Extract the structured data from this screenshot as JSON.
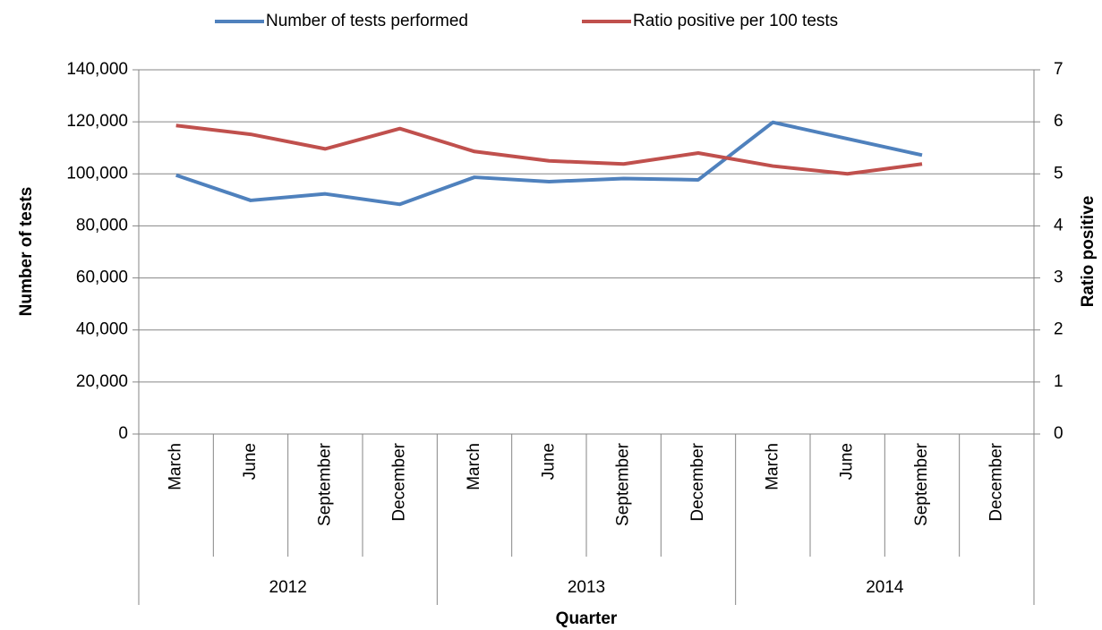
{
  "chart_data": {
    "type": "line",
    "categories": [
      "March",
      "June",
      "September",
      "December",
      "March",
      "June",
      "September",
      "December",
      "March",
      "June",
      "September",
      "December"
    ],
    "category_groups": [
      {
        "name": "2012",
        "count": 4
      },
      {
        "name": "2013",
        "count": 4
      },
      {
        "name": "2014",
        "count": 4
      }
    ],
    "x_label": "Quarter",
    "y_label": "Number of tests",
    "y2_label": "Ratio positive",
    "ylim": [
      0,
      140000
    ],
    "yticks": [
      {
        "value": 0,
        "label": "0"
      },
      {
        "value": 20000,
        "label": "20,000"
      },
      {
        "value": 40000,
        "label": "40,000"
      },
      {
        "value": 60000,
        "label": "60,000"
      },
      {
        "value": 80000,
        "label": "80,000"
      },
      {
        "value": 100000,
        "label": "100,000"
      },
      {
        "value": 120000,
        "label": "120,000"
      },
      {
        "value": 140000,
        "label": "140,000"
      }
    ],
    "y2lim": [
      0,
      7
    ],
    "y2ticks": [
      0,
      1,
      2,
      3,
      4,
      5,
      6,
      7
    ],
    "grid": true,
    "legend": "top",
    "series": [
      {
        "name": "Number of tests performed",
        "color": "#4f81bd",
        "values": [
          99500,
          89800,
          92300,
          88300,
          98700,
          97000,
          98200,
          97700,
          119800,
          113500,
          107200,
          null
        ]
      },
      {
        "name": "Ratio positive per 100 tests",
        "color": "#c0504d",
        "axis": "y2",
        "values": [
          5.93,
          5.76,
          5.48,
          5.87,
          5.43,
          5.25,
          5.19,
          5.4,
          5.15,
          5.0,
          5.19,
          null
        ]
      }
    ]
  }
}
